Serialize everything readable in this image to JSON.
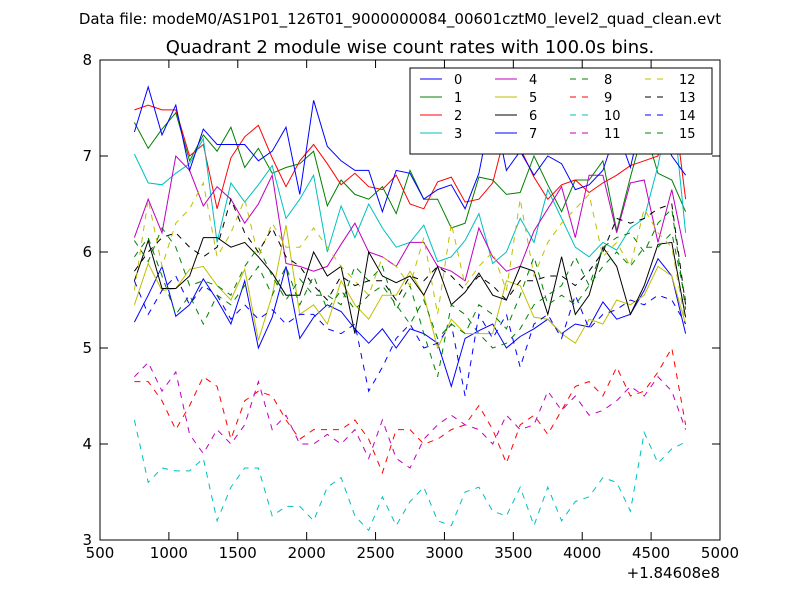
{
  "suptitle": "Data file: modeM0/AS1P01_126T01_9000000084_00601cztM0_level2_quad_clean.evt",
  "chart_data": {
    "type": "line",
    "title": "Quadrant 2 module wise count rates with 100.0s bins.",
    "xlabel": "",
    "ylabel": "",
    "x_offset_label": "+1.84608e8",
    "xlim": [
      500,
      5000
    ],
    "ylim": [
      3,
      8
    ],
    "x_ticks": [
      500,
      1000,
      1500,
      2000,
      2500,
      3000,
      3500,
      4000,
      4500,
      5000
    ],
    "x_tick_labels": [
      "500",
      "1000",
      "1500",
      "2000",
      "2500",
      "3000",
      "3500",
      "4000",
      "4500",
      "5000"
    ],
    "y_ticks": [
      3,
      4,
      5,
      6,
      7,
      8
    ],
    "y_tick_labels": [
      "3",
      "4",
      "5",
      "6",
      "7",
      "8"
    ],
    "grid": false,
    "legend_placement": "top-right",
    "legend_columns": 4,
    "x": [
      750,
      850,
      950,
      1050,
      1150,
      1250,
      1350,
      1450,
      1550,
      1650,
      1750,
      1850,
      1950,
      2050,
      2150,
      2250,
      2350,
      2450,
      2550,
      2650,
      2750,
      2850,
      2950,
      3050,
      3150,
      3250,
      3350,
      3450,
      3550,
      3650,
      3750,
      3850,
      3950,
      4050,
      4150,
      4250,
      4350,
      4450,
      4550,
      4650,
      4750
    ],
    "series": [
      {
        "name": "0",
        "color": "#0000ff",
        "dash": "solid",
        "values": [
          5.27,
          5.55,
          5.85,
          5.33,
          5.45,
          5.72,
          5.5,
          5.25,
          5.7,
          5.0,
          5.32,
          5.85,
          5.1,
          5.32,
          5.45,
          5.38,
          5.2,
          5.05,
          5.2,
          5.0,
          5.2,
          5.15,
          5.05,
          4.6,
          5.1,
          5.18,
          5.25,
          5.0,
          5.12,
          5.2,
          5.3,
          5.15,
          5.25,
          5.22,
          5.48,
          5.3,
          5.35,
          5.6,
          5.93,
          5.75,
          5.15
        ]
      },
      {
        "name": "1",
        "color": "#008000",
        "dash": "solid",
        "values": [
          7.35,
          7.08,
          7.28,
          7.45,
          6.95,
          7.22,
          7.05,
          7.3,
          6.88,
          7.08,
          6.82,
          6.88,
          6.92,
          7.05,
          6.48,
          6.75,
          6.6,
          6.55,
          6.68,
          6.4,
          6.85,
          6.55,
          6.55,
          6.25,
          6.3,
          6.78,
          6.75,
          6.6,
          6.62,
          7.0,
          6.7,
          6.42,
          6.75,
          6.75,
          6.95,
          6.22,
          6.78,
          7.3,
          6.82,
          6.75,
          6.42
        ]
      },
      {
        "name": "2",
        "color": "#ff0000",
        "dash": "solid",
        "values": [
          7.48,
          7.53,
          7.48,
          7.48,
          7.0,
          7.12,
          6.45,
          6.98,
          7.2,
          7.32,
          6.98,
          6.68,
          6.95,
          7.12,
          6.92,
          6.7,
          6.82,
          6.68,
          6.65,
          6.8,
          6.5,
          6.45,
          6.73,
          6.78,
          6.52,
          6.55,
          6.72,
          7.28,
          7.08,
          6.78,
          6.55,
          6.7,
          6.75,
          6.62,
          6.72,
          6.8,
          6.9,
          6.95,
          7.0,
          7.7,
          6.55
        ]
      },
      {
        "name": "3",
        "color": "#00bfbf",
        "dash": "solid",
        "values": [
          7.02,
          6.72,
          6.7,
          6.82,
          6.92,
          7.18,
          6.1,
          6.72,
          6.52,
          6.7,
          6.9,
          6.35,
          6.55,
          6.8,
          6.0,
          6.48,
          6.15,
          6.5,
          6.25,
          6.05,
          6.1,
          6.28,
          5.9,
          5.95,
          6.12,
          6.4,
          5.88,
          6.0,
          6.35,
          6.1,
          6.65,
          6.35,
          6.05,
          5.95,
          6.1,
          6.02,
          6.25,
          6.35,
          6.9,
          7.62,
          6.2
        ]
      },
      {
        "name": "4",
        "color": "#bf00bf",
        "dash": "solid",
        "values": [
          6.15,
          6.55,
          6.2,
          7.0,
          6.85,
          6.48,
          6.68,
          6.55,
          6.3,
          6.5,
          6.8,
          5.88,
          5.85,
          5.8,
          5.85,
          6.08,
          6.3,
          6.0,
          5.95,
          5.85,
          6.1,
          6.1,
          5.85,
          5.8,
          5.7,
          6.25,
          5.95,
          5.8,
          5.85,
          6.22,
          6.45,
          6.68,
          6.15,
          6.8,
          6.8,
          6.2,
          6.72,
          6.75,
          6.1,
          6.65,
          5.95
        ]
      },
      {
        "name": "5",
        "color": "#bfbf00",
        "dash": "solid",
        "values": [
          5.45,
          5.88,
          5.6,
          5.62,
          5.82,
          5.85,
          5.65,
          5.5,
          5.82,
          5.08,
          5.55,
          6.28,
          5.35,
          5.45,
          5.25,
          5.7,
          5.45,
          5.3,
          5.55,
          5.55,
          5.8,
          5.55,
          5.0,
          5.3,
          5.15,
          5.15,
          5.15,
          5.7,
          5.65,
          5.32,
          5.3,
          5.15,
          5.05,
          5.3,
          5.25,
          5.5,
          5.45,
          5.55,
          5.85,
          5.75,
          5.25
        ]
      },
      {
        "name": "6",
        "color": "#000000",
        "dash": "solid",
        "values": [
          5.7,
          6.12,
          5.62,
          5.62,
          5.75,
          6.15,
          6.15,
          6.05,
          6.1,
          5.95,
          5.78,
          5.55,
          5.55,
          6.0,
          5.75,
          5.85,
          5.15,
          6.0,
          5.75,
          5.68,
          5.75,
          5.55,
          5.85,
          5.45,
          5.58,
          5.78,
          5.55,
          5.5,
          5.85,
          5.8,
          5.35,
          5.95,
          5.35,
          5.55,
          6.05,
          5.85,
          5.35,
          5.65,
          6.08,
          6.1,
          5.32
        ]
      },
      {
        "name": "7",
        "color": "#0000ff",
        "dash": "solid",
        "values": [
          7.25,
          7.72,
          7.22,
          7.53,
          6.85,
          7.28,
          7.12,
          7.12,
          7.12,
          6.95,
          7.05,
          7.3,
          6.6,
          7.58,
          7.1,
          6.95,
          6.85,
          6.85,
          6.42,
          6.85,
          6.82,
          6.55,
          6.65,
          6.7,
          6.45,
          6.82,
          7.55,
          6.85,
          7.05,
          6.8,
          7.0,
          6.92,
          6.65,
          6.7,
          6.85,
          7.28,
          6.88,
          7.5,
          7.3,
          7.0,
          6.8
        ]
      },
      {
        "name": "8",
        "color": "#008000",
        "dash": "dashed",
        "values": [
          6.12,
          5.9,
          6.25,
          6.05,
          5.65,
          5.7,
          5.65,
          5.55,
          5.85,
          6.05,
          5.75,
          5.5,
          5.72,
          5.55,
          5.55,
          5.45,
          5.85,
          5.7,
          5.85,
          5.4,
          5.65,
          5.15,
          4.7,
          5.45,
          5.35,
          5.15,
          5.0,
          5.05,
          5.2,
          5.45,
          5.55,
          5.65,
          5.95,
          5.65,
          6.05,
          6.15,
          6.2,
          6.0,
          6.3,
          6.45,
          5.4
        ]
      },
      {
        "name": "9",
        "color": "#ff0000",
        "dash": "dashed",
        "values": [
          4.65,
          4.65,
          4.45,
          4.15,
          4.4,
          4.7,
          4.6,
          4.05,
          4.45,
          4.55,
          4.5,
          4.25,
          4.05,
          4.15,
          4.15,
          4.15,
          4.25,
          4.05,
          3.7,
          4.15,
          4.15,
          4.0,
          4.05,
          4.15,
          4.2,
          4.4,
          4.15,
          3.8,
          4.2,
          4.3,
          4.1,
          4.35,
          4.6,
          4.65,
          4.5,
          4.8,
          4.5,
          4.55,
          4.75,
          5.0,
          4.2
        ]
      },
      {
        "name": "10",
        "color": "#00bfbf",
        "dash": "dashed",
        "values": [
          4.25,
          3.6,
          3.75,
          3.72,
          3.72,
          3.85,
          3.2,
          3.55,
          3.75,
          3.75,
          3.25,
          3.35,
          3.35,
          3.2,
          3.55,
          3.65,
          3.25,
          3.1,
          3.45,
          3.15,
          3.4,
          3.55,
          3.2,
          3.15,
          3.5,
          3.55,
          3.3,
          3.25,
          3.55,
          3.15,
          3.55,
          3.2,
          3.4,
          3.45,
          3.65,
          3.6,
          3.3,
          4.12,
          3.8,
          3.95,
          4.02
        ]
      },
      {
        "name": "11",
        "color": "#bf00bf",
        "dash": "dashed",
        "values": [
          4.7,
          4.85,
          4.55,
          4.75,
          4.1,
          3.9,
          4.15,
          4.0,
          4.2,
          4.65,
          4.15,
          4.3,
          4.0,
          4.0,
          4.1,
          4.0,
          4.15,
          3.85,
          4.25,
          3.85,
          3.75,
          4.05,
          4.2,
          4.3,
          4.2,
          4.15,
          4.0,
          4.3,
          4.15,
          4.2,
          4.55,
          4.35,
          4.5,
          4.3,
          4.35,
          4.45,
          4.6,
          4.5,
          4.7,
          4.55,
          4.15
        ]
      },
      {
        "name": "12",
        "color": "#bfbf00",
        "dash": "dashed",
        "values": [
          5.6,
          6.55,
          5.85,
          6.3,
          6.45,
          6.72,
          5.95,
          6.2,
          6.55,
          5.95,
          6.3,
          6.05,
          6.05,
          6.25,
          6.05,
          5.85,
          5.7,
          5.55,
          5.95,
          5.85,
          5.65,
          6.15,
          5.35,
          6.3,
          5.65,
          5.85,
          6.0,
          5.6,
          6.55,
          5.75,
          6.1,
          6.3,
          6.45,
          6.6,
          5.95,
          6.1,
          5.85,
          6.45,
          6.2,
          6.05,
          5.25
        ]
      },
      {
        "name": "13",
        "color": "#000000",
        "dash": "dashed",
        "values": [
          5.8,
          6.0,
          6.15,
          6.2,
          6.05,
          5.95,
          6.05,
          6.55,
          6.2,
          6.0,
          6.25,
          5.95,
          5.85,
          5.65,
          5.5,
          5.75,
          5.65,
          5.7,
          5.7,
          5.5,
          5.75,
          5.7,
          5.85,
          5.75,
          5.6,
          5.75,
          5.65,
          5.5,
          5.7,
          5.7,
          5.75,
          5.75,
          5.65,
          5.8,
          6.0,
          6.35,
          6.3,
          6.35,
          6.45,
          6.5,
          5.45
        ]
      },
      {
        "name": "14",
        "color": "#0000ff",
        "dash": "dashed",
        "values": [
          5.7,
          5.35,
          5.6,
          5.75,
          5.45,
          5.65,
          5.55,
          5.3,
          5.45,
          5.3,
          5.4,
          5.25,
          5.35,
          5.35,
          5.2,
          5.15,
          5.25,
          4.55,
          4.8,
          5.1,
          5.25,
          5.0,
          5.05,
          5.25,
          4.5,
          5.35,
          5.1,
          5.35,
          4.8,
          5.25,
          5.35,
          5.1,
          5.55,
          5.2,
          5.35,
          5.4,
          5.5,
          5.45,
          5.55,
          5.5,
          5.25
        ]
      },
      {
        "name": "15",
        "color": "#008000",
        "dash": "dashed",
        "values": [
          5.95,
          6.15,
          5.75,
          5.35,
          5.55,
          5.25,
          5.55,
          5.45,
          5.65,
          5.85,
          5.55,
          5.85,
          5.45,
          5.75,
          5.4,
          5.6,
          5.4,
          5.55,
          5.65,
          5.45,
          5.25,
          5.5,
          5.1,
          5.25,
          5.15,
          5.45,
          5.35,
          5.2,
          5.55,
          5.95,
          5.45,
          5.55,
          5.45,
          5.65,
          5.85,
          6.0,
          5.85,
          6.05,
          6.05,
          6.2,
          5.5
        ]
      }
    ]
  }
}
